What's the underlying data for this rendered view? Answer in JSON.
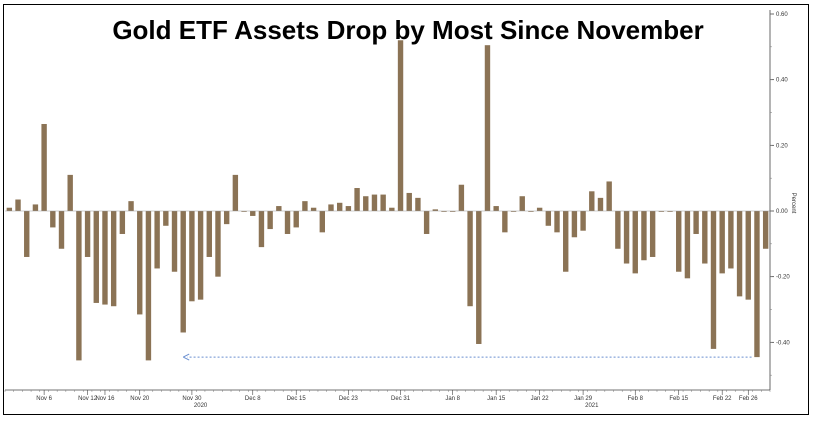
{
  "chart_data": {
    "type": "bar",
    "title": "Gold ETF Assets Drop by Most Since November",
    "ylabel": "Percent",
    "ylim": [
      -0.54,
      0.6
    ],
    "yticks": [
      0.6,
      0.4,
      0.2,
      0.0,
      -0.2,
      -0.4
    ],
    "ytick_labels": [
      "0.60",
      "0.40",
      "0.20",
      "0.00",
      "-0.20",
      "-0.40"
    ],
    "y_axis_side": "right",
    "grid": false,
    "bar_color": "#8b7355",
    "x_tick_labels": [
      {
        "label": "Nov 6",
        "bar": 4
      },
      {
        "label": "Nov 12",
        "bar": 9
      },
      {
        "label": "Nov 16",
        "bar": 11
      },
      {
        "label": "Nov 20",
        "bar": 15
      },
      {
        "label": "Nov 30",
        "bar": 21
      },
      {
        "label": "Dec 8",
        "bar": 28
      },
      {
        "label": "Dec 15",
        "bar": 33
      },
      {
        "label": "Dec 23",
        "bar": 39
      },
      {
        "label": "Dec 31",
        "bar": 45
      },
      {
        "label": "Jan 8",
        "bar": 51
      },
      {
        "label": "Jan 15",
        "bar": 56
      },
      {
        "label": "Jan 22",
        "bar": 61
      },
      {
        "label": "Jan 29",
        "bar": 66
      },
      {
        "label": "Feb 8",
        "bar": 72
      },
      {
        "label": "Feb 15",
        "bar": 77
      },
      {
        "label": "Feb 22",
        "bar": 82
      },
      {
        "label": "Feb 26",
        "bar": 85
      }
    ],
    "year_labels": [
      {
        "label": "2020",
        "bar": 22
      },
      {
        "label": "2021",
        "bar": 67
      }
    ],
    "values": [
      0.01,
      0.035,
      -0.14,
      0.02,
      0.265,
      -0.05,
      -0.115,
      0.11,
      -0.455,
      -0.14,
      -0.28,
      -0.285,
      -0.29,
      -0.07,
      0.03,
      -0.315,
      -0.455,
      -0.175,
      -0.045,
      -0.185,
      -0.37,
      -0.275,
      -0.27,
      -0.14,
      -0.2,
      -0.04,
      0.11,
      0.0,
      -0.015,
      -0.11,
      -0.055,
      0.015,
      -0.07,
      -0.05,
      0.03,
      0.01,
      -0.065,
      0.02,
      0.025,
      0.015,
      0.07,
      0.045,
      0.05,
      0.05,
      0.01,
      0.52,
      0.055,
      0.04,
      -0.07,
      0.005,
      0.0,
      0.0,
      0.08,
      -0.29,
      -0.405,
      0.505,
      0.015,
      -0.065,
      0.0,
      0.045,
      0.0,
      0.01,
      -0.045,
      -0.065,
      -0.185,
      -0.08,
      -0.06,
      0.06,
      0.04,
      0.09,
      -0.115,
      -0.16,
      -0.19,
      -0.15,
      -0.14,
      0.0,
      0.0,
      -0.185,
      -0.205,
      -0.07,
      -0.16,
      -0.42,
      -0.19,
      -0.175,
      -0.26,
      -0.27,
      -0.445,
      -0.115
    ],
    "annotations": [
      {
        "type": "dashed-arrow",
        "from_bar": 86,
        "to_bar": 20,
        "y": -0.445,
        "color": "#6a8fd0"
      }
    ]
  }
}
